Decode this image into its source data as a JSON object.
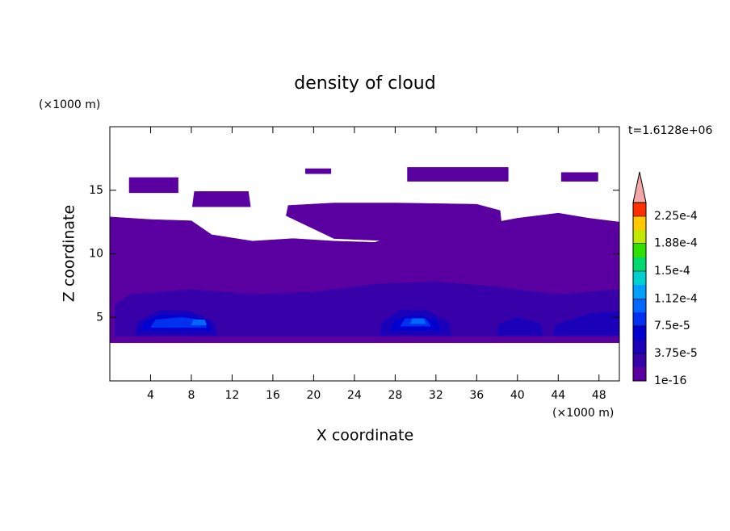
{
  "chart_data": {
    "type": "contour",
    "title": "density of cloud",
    "x_label": "X coordinate",
    "y_label": "Z coordinate",
    "x_unit": "(×1000 m)",
    "y_unit": "(×1000 m)",
    "annotation": "t=1.6128e+06",
    "xlim": [
      0,
      50
    ],
    "ylim": [
      0,
      20
    ],
    "xticks": [
      4,
      8,
      12,
      16,
      20,
      24,
      28,
      32,
      36,
      40,
      44,
      48
    ],
    "yticks": [
      5,
      10,
      15
    ],
    "colorbar": {
      "clim": [
        1e-16,
        0.00024375
      ],
      "ticks": [
        1e-16,
        {
          "value": 3.75e-05,
          "label": "3.75e-5"
        },
        {
          "value": 7.5e-05,
          "label": "7.5e-5"
        },
        {
          "value": 0.000112,
          "label": "1.12e-4"
        },
        {
          "value": 0.00015,
          "label": "1.5e-4"
        },
        {
          "value": 0.000188,
          "label": "1.88e-4"
        },
        {
          "value": 0.000225,
          "label": "2.25e-4"
        }
      ],
      "colors": [
        "#5a00a0",
        "#3800a8",
        "#1a00b8",
        "#0000d0",
        "#0030f0",
        "#0068ff",
        "#00a0ff",
        "#00d0d0",
        "#00d870",
        "#30e000",
        "#c0e800",
        "#ffc800",
        "#ff3000"
      ],
      "extend_color": "#f4a8a8"
    },
    "regions": [
      {
        "level": 1e-16,
        "x": [
          0,
          50,
          50,
          47,
          44,
          40,
          38,
          36,
          32,
          28,
          26,
          22,
          18,
          14,
          10,
          8,
          4,
          0
        ],
        "y": [
          3,
          3,
          12.5,
          12.8,
          13.2,
          12.8,
          12.5,
          11.5,
          11.2,
          11.4,
          10.9,
          11.0,
          11.2,
          11.0,
          11.5,
          12.6,
          12.7,
          12.9
        ]
      },
      {
        "level": 1e-16,
        "x": [
          17.3,
          22,
          28,
          34,
          38.5,
          38.3,
          36,
          28,
          22,
          17.5
        ],
        "y": [
          13.0,
          11.2,
          11.0,
          11.3,
          11.8,
          13.4,
          13.9,
          14.0,
          14.0,
          13.8
        ]
      },
      {
        "level": 1e-16,
        "x": [
          1.9,
          6.7,
          6.7,
          1.9
        ],
        "y": [
          14.8,
          14.8,
          16.0,
          16.0
        ]
      },
      {
        "level": 1e-16,
        "x": [
          8.1,
          13.8,
          13.6,
          8.3
        ],
        "y": [
          13.7,
          13.7,
          14.9,
          14.9
        ]
      },
      {
        "level": 1e-16,
        "x": [
          19.2,
          21.7,
          21.7,
          19.2
        ],
        "y": [
          16.3,
          16.3,
          16.7,
          16.7
        ]
      },
      {
        "level": 1e-16,
        "x": [
          29.2,
          39.1,
          39.1,
          29.2
        ],
        "y": [
          15.7,
          15.7,
          16.8,
          16.8
        ]
      },
      {
        "level": 1e-16,
        "x": [
          44.3,
          47.9,
          47.9,
          44.3
        ],
        "y": [
          15.7,
          15.7,
          16.4,
          16.4
        ]
      },
      {
        "level": 1.875e-05,
        "x": [
          0.5,
          50,
          50,
          44,
          38,
          32,
          26,
          20,
          14,
          8,
          2,
          0.5
        ],
        "y": [
          3.5,
          3.5,
          7.2,
          6.8,
          7.4,
          7.8,
          7.6,
          7.0,
          6.8,
          7.2,
          6.8,
          6.0
        ]
      },
      {
        "level": 3.75e-05,
        "x": [
          2.5,
          10.5,
          10.3,
          8,
          5,
          2.7
        ],
        "y": [
          3.6,
          3.6,
          4.6,
          5.5,
          5.6,
          4.6
        ]
      },
      {
        "level": 3.75e-05,
        "x": [
          26.5,
          33.5,
          33.3,
          31,
          28.5,
          26.7
        ],
        "y": [
          3.6,
          3.6,
          4.6,
          5.6,
          5.6,
          4.6
        ]
      },
      {
        "level": 3.75e-05,
        "x": [
          38,
          42.5,
          42.3,
          40,
          38.2
        ],
        "y": [
          3.6,
          3.6,
          4.5,
          5.0,
          4.5
        ]
      },
      {
        "level": 3.75e-05,
        "x": [
          43.5,
          50,
          50,
          47,
          43.7
        ],
        "y": [
          3.6,
          3.6,
          5.5,
          5.3,
          4.4
        ]
      },
      {
        "level": 5.625e-05,
        "x": [
          3,
          10,
          9.6,
          7.5,
          5,
          3.3
        ],
        "y": [
          4.0,
          4.0,
          4.7,
          5.2,
          5.2,
          4.6
        ]
      },
      {
        "level": 5.625e-05,
        "x": [
          27.5,
          32.5,
          32,
          30,
          28
        ],
        "y": [
          4.0,
          4.0,
          4.8,
          5.2,
          4.8
        ]
      },
      {
        "level": 7.5e-05,
        "x": [
          4,
          9.5,
          9,
          7,
          4.5
        ],
        "y": [
          4.2,
          4.2,
          4.8,
          5.0,
          4.8
        ]
      },
      {
        "level": 7.5e-05,
        "x": [
          28.5,
          31.5,
          31,
          29
        ],
        "y": [
          4.3,
          4.3,
          4.9,
          4.9
        ]
      },
      {
        "level": 9.375e-05,
        "x": [
          8,
          9.5,
          9.3,
          8.2
        ],
        "y": [
          4.4,
          4.4,
          4.8,
          4.8
        ]
      },
      {
        "level": 9.375e-05,
        "x": [
          29.5,
          31,
          30.8,
          29.7
        ],
        "y": [
          4.5,
          4.5,
          4.9,
          4.9
        ]
      }
    ]
  }
}
